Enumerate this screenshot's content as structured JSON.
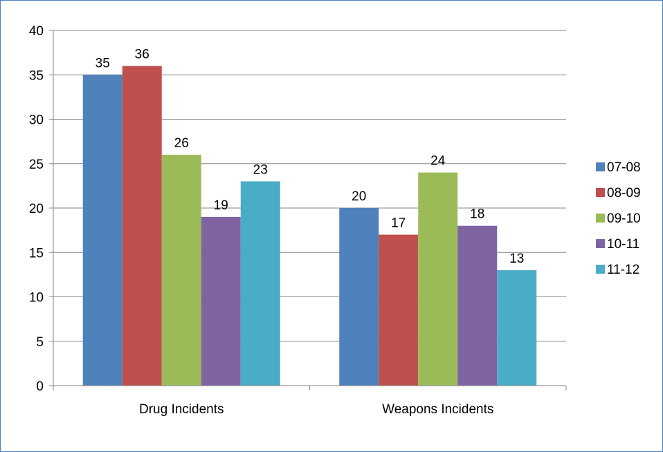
{
  "chart_data": {
    "type": "bar",
    "categories": [
      "Drug Incidents",
      "Weapons Incidents"
    ],
    "series": [
      {
        "name": "07-08",
        "color": "#4f81bd",
        "values": [
          35,
          20
        ]
      },
      {
        "name": "08-09",
        "color": "#c0504d",
        "values": [
          36,
          17
        ]
      },
      {
        "name": "09-10",
        "color": "#9bbb59",
        "values": [
          26,
          24
        ]
      },
      {
        "name": "10-11",
        "color": "#8064a2",
        "values": [
          19,
          18
        ]
      },
      {
        "name": "11-12",
        "color": "#4bacc6",
        "values": [
          23,
          13
        ]
      }
    ],
    "ylim": [
      0,
      40
    ],
    "yticks": [
      0,
      5,
      10,
      15,
      20,
      25,
      30,
      35,
      40
    ],
    "title": "",
    "xlabel": "",
    "ylabel": "",
    "grid": true,
    "legend_position": "right",
    "data_labels": true
  }
}
